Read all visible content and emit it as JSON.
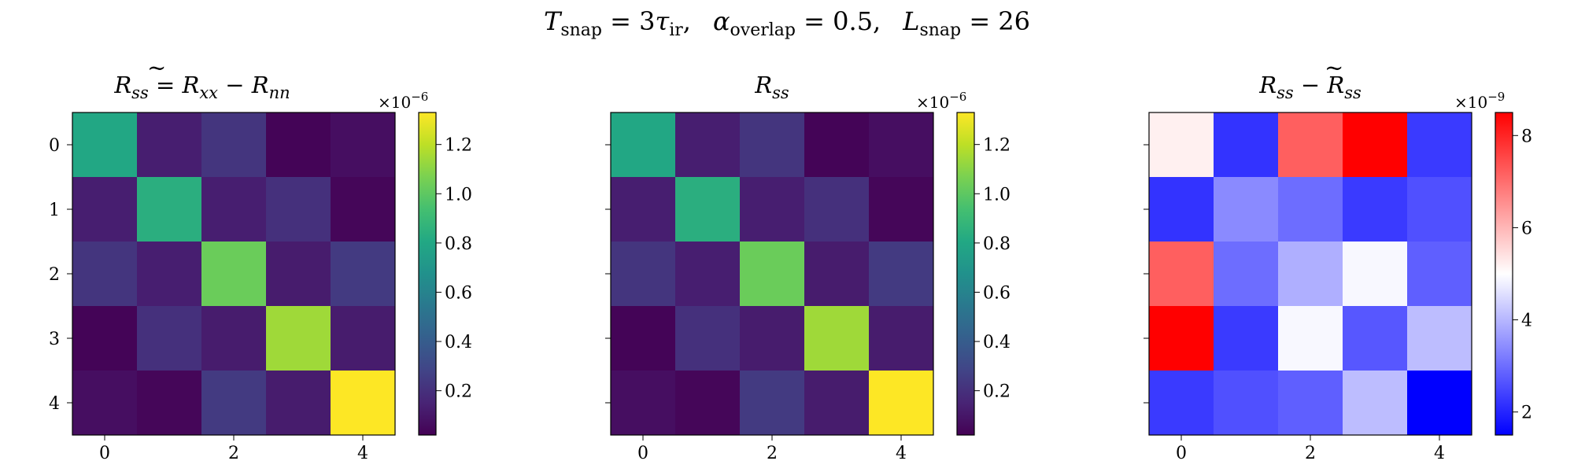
{
  "figure": {
    "suptitle": {
      "t_var": "T",
      "t_sub": "snap",
      "t_eq": " = 3",
      "tau": "τ",
      "tau_sub": "ir",
      "sep1": ",",
      "a_var": "α",
      "a_sub": "overlap",
      "a_eq": " = 0.5",
      "sep2": ",",
      "l_var": "L",
      "l_sub": "snap",
      "l_eq": " = 26"
    }
  },
  "chart_data": [
    {
      "type": "heatmap",
      "title": {
        "lhs": "R",
        "lhs_sub": "ss",
        "eq": " = ",
        "a": "R",
        "a_sub": "xx",
        "minus": " − ",
        "b": "R",
        "b_sub": "nn",
        "tilde": "~"
      },
      "x_ticks": [
        "0",
        "2",
        "4"
      ],
      "y_ticks": [
        "0",
        "1",
        "2",
        "3",
        "4"
      ],
      "colormap": "viridis",
      "colorbar": {
        "min": 0.02,
        "max": 1.33,
        "ticks": [
          "0.2",
          "0.4",
          "0.6",
          "0.8",
          "1.0",
          "1.2"
        ],
        "ticks_values": [
          0.2,
          0.4,
          0.6,
          0.8,
          1.0,
          1.2
        ],
        "scale_base": "×10",
        "scale_exp": "−6"
      },
      "matrix": [
        [
          0.8,
          0.13,
          0.22,
          0.03,
          0.07
        ],
        [
          0.13,
          0.84,
          0.13,
          0.2,
          0.04
        ],
        [
          0.22,
          0.13,
          1.03,
          0.12,
          0.24
        ],
        [
          0.03,
          0.2,
          0.12,
          1.14,
          0.12
        ],
        [
          0.07,
          0.04,
          0.24,
          0.12,
          1.33
        ]
      ]
    },
    {
      "type": "heatmap",
      "title": {
        "lhs": "R",
        "lhs_sub": "ss"
      },
      "x_ticks": [
        "0",
        "2",
        "4"
      ],
      "y_ticks": [
        "",
        "",
        "",
        "",
        ""
      ],
      "colormap": "viridis",
      "colorbar": {
        "min": 0.02,
        "max": 1.33,
        "ticks": [
          "0.2",
          "0.4",
          "0.6",
          "0.8",
          "1.0",
          "1.2"
        ],
        "ticks_values": [
          0.2,
          0.4,
          0.6,
          0.8,
          1.0,
          1.2
        ],
        "scale_base": "×10",
        "scale_exp": "−6"
      },
      "matrix": [
        [
          0.8,
          0.13,
          0.22,
          0.03,
          0.07
        ],
        [
          0.13,
          0.84,
          0.13,
          0.2,
          0.04
        ],
        [
          0.22,
          0.13,
          1.03,
          0.12,
          0.24
        ],
        [
          0.03,
          0.2,
          0.12,
          1.14,
          0.12
        ],
        [
          0.07,
          0.04,
          0.24,
          0.12,
          1.33
        ]
      ]
    },
    {
      "type": "heatmap",
      "title": {
        "lhs": "R",
        "lhs_sub": "ss",
        "minus": " − ",
        "b": "R",
        "b_sub": "ss",
        "tilde": "~"
      },
      "x_ticks": [
        "0",
        "2",
        "4"
      ],
      "y_ticks": [
        "",
        "",
        "",
        "",
        ""
      ],
      "colormap": "bwr",
      "colorbar": {
        "min": 1.5,
        "max": 8.5,
        "ticks": [
          "2",
          "4",
          "6",
          "8"
        ],
        "ticks_values": [
          2,
          4,
          6,
          8
        ],
        "scale_base": "×10",
        "scale_exp": "−9"
      },
      "matrix": [
        [
          5.2,
          2.2,
          7.2,
          8.5,
          2.3
        ],
        [
          2.2,
          3.4,
          3.0,
          2.3,
          2.6
        ],
        [
          7.2,
          3.0,
          3.9,
          4.9,
          2.8
        ],
        [
          8.5,
          2.3,
          4.9,
          2.7,
          4.1
        ],
        [
          2.3,
          2.6,
          2.8,
          4.1,
          1.5
        ]
      ]
    }
  ]
}
